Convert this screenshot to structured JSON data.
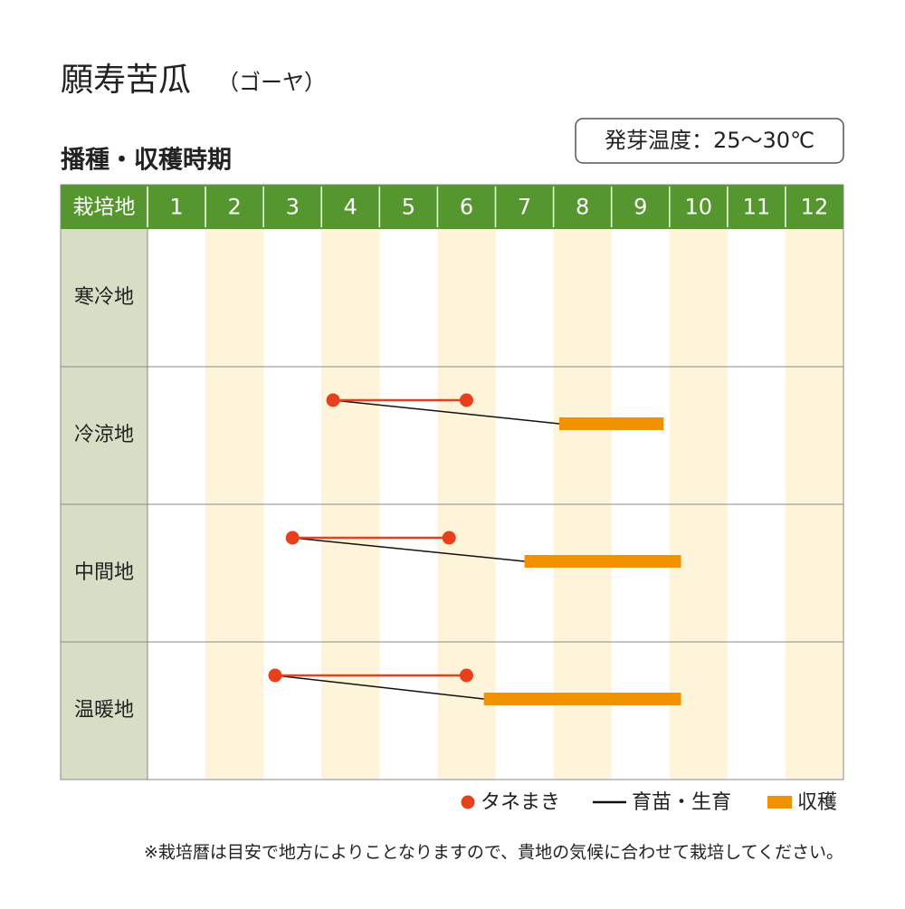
{
  "chart_data": {
    "type": "gantt",
    "title": "願寿苦瓜",
    "title_note": "（ゴーヤ）",
    "germination": "発芽温度：25〜30℃",
    "subtitle": "播種・収穫時期",
    "row_header": "栽培地",
    "categories": [
      "1",
      "2",
      "3",
      "4",
      "5",
      "6",
      "7",
      "8",
      "9",
      "10",
      "11",
      "12"
    ],
    "xlim": [
      0,
      12
    ],
    "rows": [
      {
        "name": "寒冷地",
        "sowing": null,
        "harvest": null
      },
      {
        "name": "冷涼地",
        "sowing": [
          3.2,
          5.5
        ],
        "harvest": [
          7.1,
          8.9
        ]
      },
      {
        "name": "中間地",
        "sowing": [
          2.5,
          5.2
        ],
        "harvest": [
          6.5,
          9.2
        ]
      },
      {
        "name": "温暖地",
        "sowing": [
          2.2,
          5.5
        ],
        "harvest": [
          5.8,
          9.2
        ]
      }
    ],
    "legend": [
      {
        "name": "タネまき",
        "color": "#e8401c"
      },
      {
        "name": "育苗・生育",
        "color": "#111111"
      },
      {
        "name": "収穫",
        "color": "#f39200"
      }
    ],
    "header_color": "#55972e",
    "label_color": "#d6dfc5",
    "stripe_color": "#fdf4da",
    "note": "※栽培暦は目安で地方によりことなりますので、貴地の気候に合わせて栽培してください。"
  }
}
